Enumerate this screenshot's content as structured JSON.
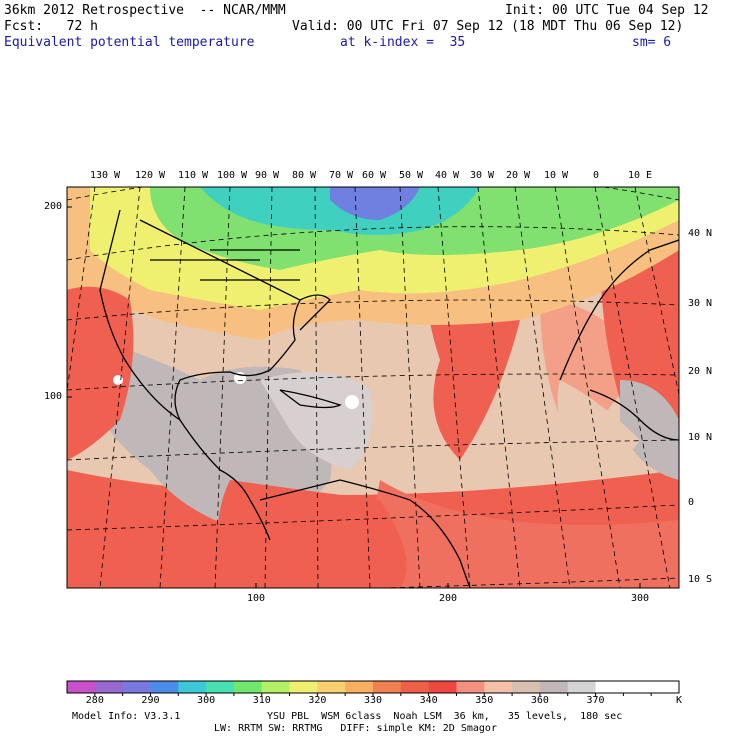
{
  "header": {
    "model": "36km 2012 Retrospective  -- NCAR/MMM",
    "init": "Init: 00 UTC Tue 04 Sep 12",
    "fcst": "Fcst:   72 h",
    "valid": "Valid: 00 UTC Fri 07 Sep 12 (18 MDT Thu 06 Sep 12)",
    "field": "Equivalent potential temperature",
    "level": "at k-index =  35",
    "smooth": "sm= 6"
  },
  "map": {
    "lon_labels": [
      "130 W",
      "120 W",
      "110 W",
      "100 W",
      "90 W",
      "80 W",
      "70 W",
      "60 W",
      "50 W",
      "40 W",
      "30 W",
      "20 W",
      "10 W",
      "0",
      "10 E"
    ],
    "lat_labels": [
      "40 N",
      "30 N",
      "20 N",
      "10 N",
      "0",
      "10 S"
    ],
    "grid_y_labels": [
      "200",
      "100"
    ],
    "grid_x_labels": [
      "100",
      "200",
      "300"
    ],
    "colors": {
      "cold": "#3fd0c0",
      "cool": "#80e070",
      "mild": "#f0f070",
      "warm": "#f8c080",
      "hot": "#f06050",
      "hotter": "#f07060",
      "salmon": "#f4a088",
      "beige": "#e8c8b0",
      "grey": "#c0b8b8",
      "lightgrey": "#d8d0d0",
      "white": "#ffffff",
      "blue": "#7080e0"
    }
  },
  "colorbar": {
    "unit": "K",
    "colors": [
      "#c850c8",
      "#9868d0",
      "#7878e0",
      "#4c8ce8",
      "#3cc8d8",
      "#48e0b0",
      "#70e870",
      "#b4f064",
      "#f0f070",
      "#f8d070",
      "#f8b060",
      "#f08050",
      "#f06048",
      "#f04840",
      "#f49080",
      "#f4c0a8",
      "#d8c0b0",
      "#c0b8b8",
      "#d4d4d4",
      "#ffffff",
      "#ffffff",
      "#ffffff"
    ],
    "labels": [
      "280",
      "290",
      "300",
      "310",
      "320",
      "330",
      "340",
      "350",
      "360",
      "370"
    ]
  },
  "footer": {
    "line1_left": "Model Info: V3.3.1",
    "line1_right": "YSU PBL  WSM 6class  Noah LSM  36 km,   35 levels,  180 sec",
    "line2": "LW: RRTM SW: RRTMG   DIFF: simple KM: 2D Smagor"
  }
}
